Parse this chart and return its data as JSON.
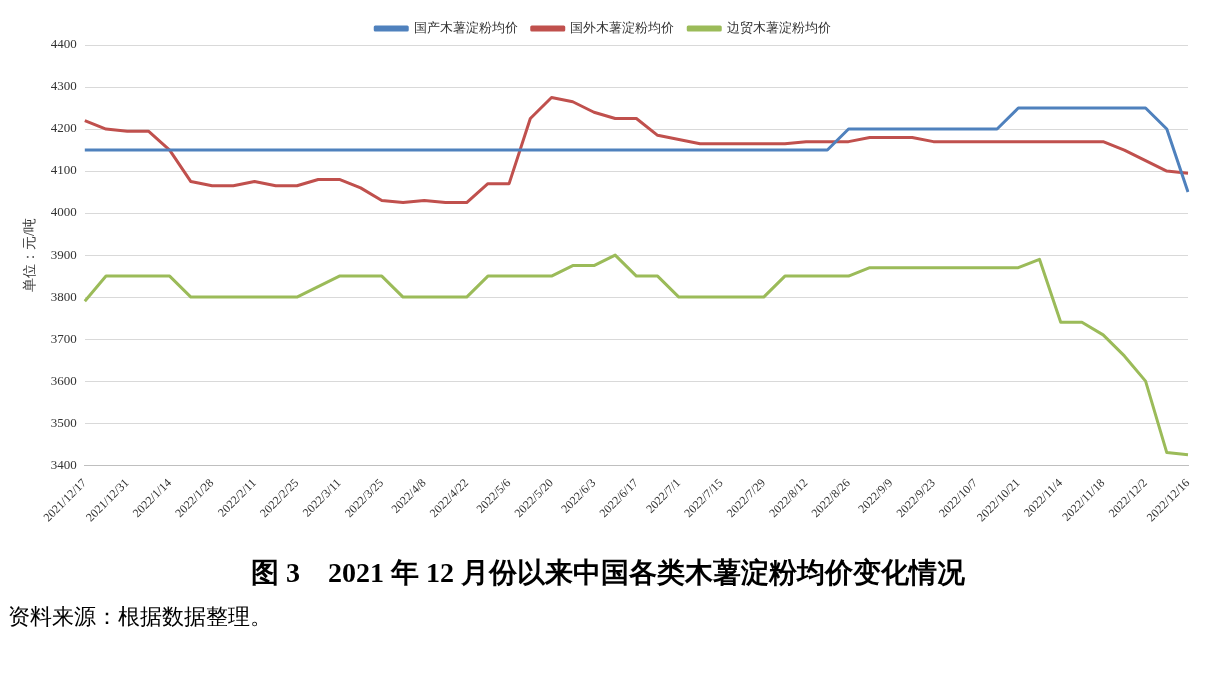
{
  "chart_data": {
    "type": "line",
    "title": "图 3　2021 年 12 月份以来中国各类木薯淀粉均价变化情况",
    "ylabel": "单位：元/吨",
    "annotations": [
      "资料来源：根据数据整理。"
    ],
    "categories": [
      "2021/12/17",
      null,
      "2021/12/31",
      null,
      "2022/1/14",
      null,
      "2022/1/28",
      null,
      "2022/2/11",
      null,
      "2022/2/25",
      null,
      "2022/3/11",
      null,
      "2022/3/25",
      null,
      "2022/4/8",
      null,
      "2022/4/22",
      null,
      "2022/5/6",
      null,
      "2022/5/20",
      null,
      "2022/6/3",
      null,
      "2022/6/17",
      null,
      "2022/7/1",
      null,
      "2022/7/15",
      null,
      "2022/7/29",
      null,
      "2022/8/12",
      null,
      "2022/8/26",
      null,
      "2022/9/9",
      null,
      "2022/9/23",
      null,
      "2022/10/7",
      null,
      "2022/10/21",
      null,
      "2022/11/4",
      null,
      "2022/11/18",
      null,
      "2022/12/2",
      null,
      "2022/12/16"
    ],
    "series": [
      {
        "name": "国产木薯淀粉均价",
        "color": "#4f81bd",
        "values": [
          4150,
          4150,
          4150,
          4150,
          4150,
          4150,
          4150,
          4150,
          4150,
          4150,
          4150,
          4150,
          4150,
          4150,
          4150,
          4150,
          4150,
          4150,
          4150,
          4150,
          4150,
          4150,
          4150,
          4150,
          4150,
          4150,
          4150,
          4150,
          4150,
          4150,
          4150,
          4150,
          4150,
          4150,
          4150,
          4150,
          4200,
          4200,
          4200,
          4200,
          4200,
          4200,
          4200,
          4200,
          4250,
          4250,
          4250,
          4250,
          4250,
          4250,
          4250,
          4200,
          4050
        ]
      },
      {
        "name": "国外木薯淀粉均价",
        "color": "#c0504d",
        "values": [
          4220,
          4200,
          4195,
          4195,
          4150,
          4075,
          4065,
          4065,
          4075,
          4065,
          4065,
          4080,
          4080,
          4060,
          4030,
          4025,
          4030,
          4025,
          4025,
          4070,
          4070,
          4225,
          4275,
          4265,
          4240,
          4225,
          4225,
          4185,
          4175,
          4165,
          4165,
          4165,
          4165,
          4165,
          4170,
          4170,
          4170,
          4180,
          4180,
          4180,
          4170,
          4170,
          4170,
          4170,
          4170,
          4170,
          4170,
          4170,
          4170,
          4150,
          4125,
          4100,
          4095
        ]
      },
      {
        "name": "边贸木薯淀粉均价",
        "color": "#9bbb59",
        "values": [
          3790,
          3850,
          3850,
          3850,
          3850,
          3800,
          3800,
          3800,
          3800,
          3800,
          3800,
          3825,
          3850,
          3850,
          3850,
          3800,
          3800,
          3800,
          3800,
          3850,
          3850,
          3850,
          3850,
          3875,
          3875,
          3900,
          3850,
          3850,
          3800,
          3800,
          3800,
          3800,
          3800,
          3850,
          3850,
          3850,
          3850,
          3870,
          3870,
          3870,
          3870,
          3870,
          3870,
          3870,
          3870,
          3890,
          3740,
          3740,
          3710,
          3660,
          3600,
          3430,
          3425
        ]
      }
    ],
    "ylim": [
      3400,
      4400
    ],
    "yticks": [
      3400,
      3500,
      3600,
      3700,
      3800,
      3900,
      4000,
      4100,
      4200,
      4300,
      4400
    ],
    "grid": "y",
    "legend": "top",
    "marker": "none",
    "line_style": "solid"
  }
}
